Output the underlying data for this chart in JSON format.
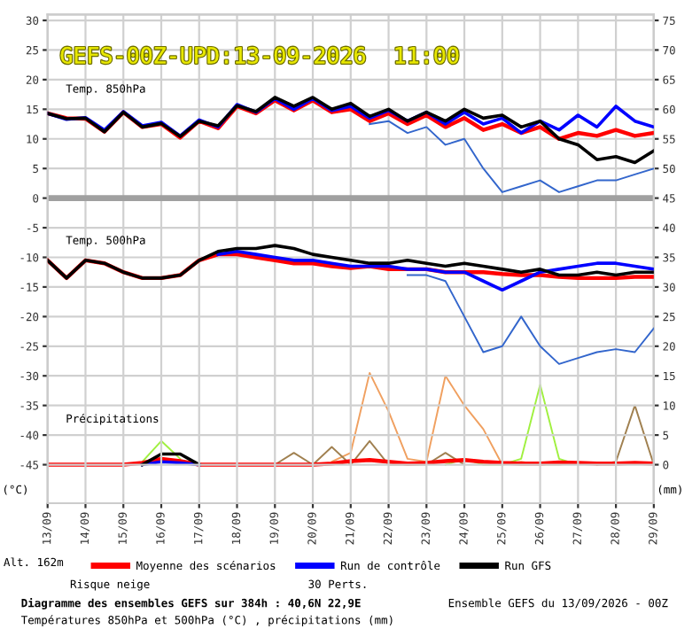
{
  "chart_data": {
    "type": "line",
    "title": "GEFS-00Z-UPD:13-09-2026  11:00",
    "ylabel": "(°C)",
    "y2label": "(mm)",
    "x": [
      "2026-09-13T00:00",
      "2026-09-13T12:00",
      "2026-09-14T00:00",
      "2026-09-14T12:00",
      "2026-09-15T00:00",
      "2026-09-15T12:00",
      "2026-09-16T00:00",
      "2026-09-16T12:00",
      "2026-09-17T00:00",
      "2026-09-17T12:00",
      "2026-09-18T00:00",
      "2026-09-18T12:00",
      "2026-09-19T00:00",
      "2026-09-19T12:00",
      "2026-09-20T00:00",
      "2026-09-20T12:00",
      "2026-09-21T00:00",
      "2026-09-21T12:00",
      "2026-09-22T00:00",
      "2026-09-22T12:00",
      "2026-09-23T00:00",
      "2026-09-23T12:00",
      "2026-09-24T00:00",
      "2026-09-24T12:00",
      "2026-09-25T00:00",
      "2026-09-25T12:00",
      "2026-09-26T00:00",
      "2026-09-26T12:00",
      "2026-09-27T00:00",
      "2026-09-27T12:00",
      "2026-09-28T00:00",
      "2026-09-28T12:00",
      "2026-09-29T00:00"
    ],
    "series": [
      {
        "color": "#3366cc",
        "values": [
          null,
          null,
          null,
          null,
          null,
          null,
          null,
          null,
          null,
          null,
          null,
          null,
          null,
          null,
          null,
          null,
          null,
          12.5,
          13,
          11,
          12,
          9,
          10,
          5,
          1,
          2,
          3,
          1,
          2,
          3,
          3,
          4,
          5
        ]
      },
      {
        "color": "#3366cc",
        "values": [
          null,
          null,
          null,
          null,
          null,
          null,
          null,
          null,
          null,
          null,
          null,
          null,
          null,
          null,
          null,
          null,
          null,
          null,
          null,
          -13,
          -13,
          -14,
          -20,
          -26,
          -25,
          -20,
          -25,
          -28,
          -27,
          -26,
          -25.5,
          -26,
          -22
        ]
      },
      {
        "color": "#f0a060",
        "axis": "y2",
        "values": [
          null,
          null,
          null,
          null,
          null,
          null,
          null,
          null,
          null,
          null,
          null,
          null,
          null,
          null,
          null,
          0.5,
          2,
          15.5,
          9,
          1,
          0.5,
          15,
          10,
          6,
          0,
          0.5,
          0,
          0,
          0.3,
          0,
          null,
          null,
          null
        ]
      },
      {
        "color": "#a0f040",
        "axis": "y2",
        "values": [
          null,
          null,
          null,
          null,
          null,
          0.5,
          4,
          1,
          null,
          null,
          null,
          null,
          null,
          null,
          null,
          null,
          null,
          null,
          null,
          null,
          null,
          0,
          1,
          0,
          0,
          1,
          13.5,
          1,
          0,
          null,
          null,
          null,
          null
        ]
      },
      {
        "color": "#a08050",
        "axis": "y2",
        "values": [
          null,
          null,
          null,
          null,
          null,
          null,
          null,
          null,
          null,
          null,
          null,
          null,
          0,
          2,
          0,
          3,
          0,
          4,
          0,
          0,
          0,
          2,
          0,
          null,
          null,
          null,
          null,
          null,
          null,
          0,
          0.5,
          10,
          0
        ]
      },
      {
        "name": "Moyenne des scénarios",
        "color": "#ff0000",
        "values": [
          14.3,
          13.5,
          13.4,
          11.2,
          14.5,
          12.0,
          12.5,
          10.2,
          13.0,
          11.8,
          15.5,
          14.3,
          16.5,
          14.8,
          16.5,
          14.5,
          15.0,
          13.0,
          14.3,
          12.5,
          14.0,
          12.0,
          13.5,
          11.5,
          12.5,
          11.0,
          12.0,
          10.0,
          11.0,
          10.5,
          11.5,
          10.5,
          11.0
        ]
      },
      {
        "name": "Run de contrôle",
        "color": "#0000ff",
        "values": [
          14.3,
          13.3,
          13.6,
          11.5,
          14.6,
          12.2,
          12.8,
          10.5,
          13.2,
          12.0,
          15.8,
          14.5,
          16.8,
          15.0,
          16.8,
          14.8,
          15.5,
          13.5,
          14.8,
          13.0,
          14.5,
          12.5,
          14.5,
          12.5,
          13.5,
          11.0,
          13.0,
          11.5,
          14.0,
          12.0,
          15.5,
          13.0,
          12.0
        ]
      },
      {
        "name": "Run GFS",
        "color": "#000000",
        "values": [
          14.3,
          13.4,
          13.5,
          11.2,
          14.5,
          12.0,
          12.6,
          10.4,
          13.0,
          12.2,
          15.6,
          14.6,
          17.0,
          15.5,
          17.0,
          15.0,
          16.0,
          13.8,
          15.0,
          13.0,
          14.5,
          13.0,
          15.0,
          13.5,
          14.0,
          12.0,
          13.0,
          10.0,
          9.0,
          6.5,
          7.0,
          6.0,
          8.0
        ]
      },
      {
        "color": "#ff0000",
        "values": [
          -10.5,
          -13.5,
          -10.5,
          -11,
          -12.5,
          -13.5,
          -13.5,
          -13,
          -10.5,
          -9.5,
          -9.5,
          -10,
          -10.5,
          -11,
          -11,
          -11.5,
          -11.8,
          -11.5,
          -12,
          -12,
          -12,
          -12.5,
          -12.5,
          -12.5,
          -12.8,
          -13,
          -13,
          -13.3,
          -13.5,
          -13.5,
          -13.5,
          -13.3,
          -13.3
        ]
      },
      {
        "color": "#0000ff",
        "values": [
          null,
          null,
          null,
          null,
          null,
          null,
          null,
          null,
          null,
          -9.5,
          -9,
          -9.5,
          -10,
          -10.5,
          -10.5,
          -11,
          -11.5,
          -11.5,
          -11.5,
          -12,
          -12,
          -12.5,
          -12.5,
          -14,
          -15.5,
          -14,
          -12.5,
          -12,
          -11.5,
          -11,
          -11,
          -11.5,
          -12
        ]
      },
      {
        "color": "#000000",
        "values": [
          -10.5,
          -13.5,
          -10.5,
          -11,
          -12.5,
          -13.5,
          -13.5,
          -13,
          -10.5,
          -9,
          -8.5,
          -8.5,
          -8,
          -8.5,
          -9.5,
          -10,
          -10.5,
          -11,
          -11,
          -10.5,
          -11,
          -11.5,
          -11,
          -11.5,
          -12,
          -12.5,
          -12,
          -13,
          -13,
          -12.5,
          -13,
          -12.5,
          -12.5
        ]
      },
      {
        "color": "#ff0000",
        "axis": "y2",
        "values": [
          0,
          0,
          0,
          0,
          0,
          0.3,
          1.0,
          0.6,
          0,
          0,
          0,
          0,
          0,
          0,
          0,
          0.2,
          0.6,
          0.8,
          0.5,
          0.2,
          0.3,
          0.6,
          0.8,
          0.5,
          0.3,
          0.2,
          0.2,
          0.4,
          0.3,
          0.2,
          0.2,
          0.3,
          0.2
        ]
      },
      {
        "color": "#0000ff",
        "axis": "y2",
        "values": [
          null,
          null,
          null,
          null,
          null,
          0,
          0.5,
          0.3,
          0,
          null,
          null,
          null,
          null,
          null,
          null,
          null,
          null,
          null,
          null,
          null,
          null,
          null,
          null,
          null,
          null,
          null,
          null,
          null,
          null,
          null,
          null,
          null,
          null
        ]
      },
      {
        "color": "#000000",
        "axis": "y2",
        "values": [
          null,
          null,
          null,
          null,
          null,
          0,
          1.8,
          1.8,
          0,
          null,
          null,
          null,
          null,
          null,
          null,
          null,
          null,
          null,
          null,
          null,
          null,
          null,
          null,
          null,
          null,
          null,
          null,
          null,
          null,
          null,
          null,
          null,
          null
        ]
      }
    ],
    "xlim": [
      "2026-09-13T00:00",
      "2026-09-29T00:00"
    ],
    "xticks": [
      {
        "value": "2026-09-13",
        "label": "13/09"
      },
      {
        "value": "2026-09-14",
        "label": "14/09"
      },
      {
        "value": "2026-09-15",
        "label": "15/09"
      },
      {
        "value": "2026-09-16",
        "label": "16/09"
      },
      {
        "value": "2026-09-17",
        "label": "17/09"
      },
      {
        "value": "2026-09-18",
        "label": "18/09"
      },
      {
        "value": "2026-09-19",
        "label": "19/09"
      },
      {
        "value": "2026-09-20",
        "label": "20/09"
      },
      {
        "value": "2026-09-21",
        "label": "21/09"
      },
      {
        "value": "2026-09-22",
        "label": "22/09"
      },
      {
        "value": "2026-09-23",
        "label": "23/09"
      },
      {
        "value": "2026-09-24",
        "label": "24/09"
      },
      {
        "value": "2026-09-25",
        "label": "25/09"
      },
      {
        "value": "2026-09-26",
        "label": "26/09"
      },
      {
        "value": "2026-09-27",
        "label": "27/09"
      },
      {
        "value": "2026-09-28",
        "label": "28/09"
      },
      {
        "value": "2026-09-29",
        "label": "29/09"
      }
    ],
    "ylim": [
      -51.5,
      31
    ],
    "yticks": [
      -45,
      -40,
      -35,
      -30,
      -25,
      -20,
      -15,
      -10,
      -5,
      0,
      5,
      10,
      15,
      20,
      25,
      30
    ],
    "y2lim": [
      -6.5,
      76
    ],
    "y2ticks": [
      0,
      5,
      10,
      15,
      20,
      25,
      30,
      35,
      40,
      45,
      50,
      55,
      60,
      65,
      70,
      75
    ],
    "ref_lines": [
      {
        "axis": "y",
        "value": 0,
        "color": "#a0a0a0"
      }
    ],
    "grid": true,
    "legend": "bottom",
    "marker": "none",
    "line_style": "solid",
    "annotations": [
      "Temp. 850hPa",
      "Temp. 500hPa",
      "Précipitations",
      "Alt. 162m",
      "Risque neige",
      "30 Perts.",
      "Diagramme des ensembles GEFS sur 384h : 40,6N 22,9E",
      "Températures 850hPa et 500hPa (°C) , précipitations (mm)",
      "Ensemble GEFS du 13/09/2026 - 00Z"
    ]
  }
}
